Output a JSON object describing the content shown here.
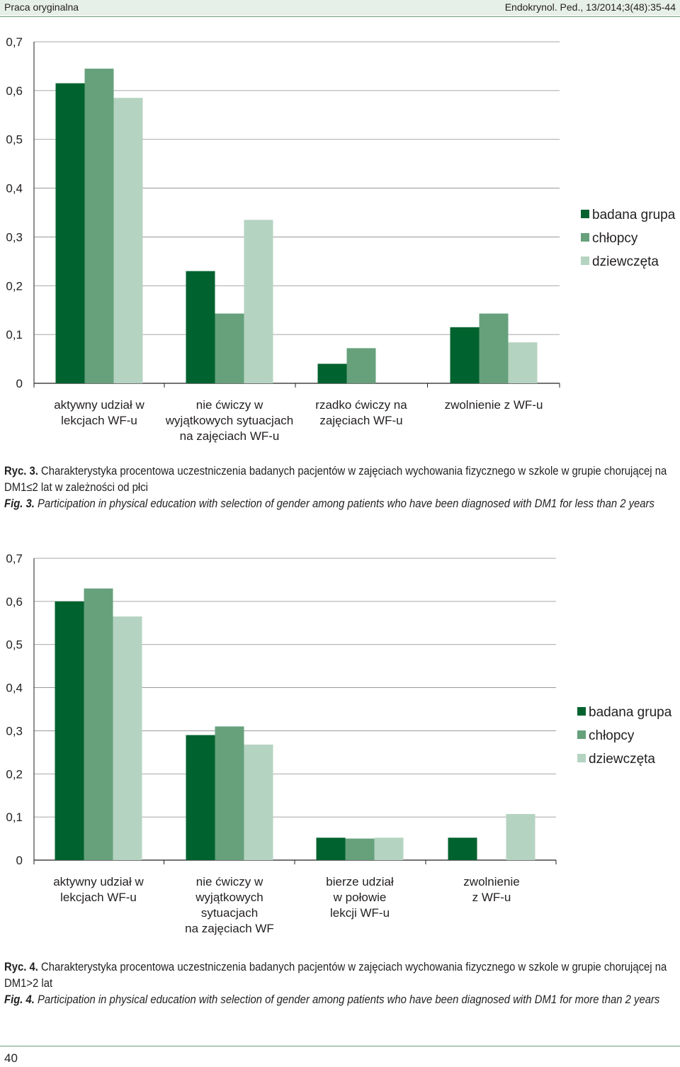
{
  "header": {
    "left": "Praca oryginalna",
    "right": "Endokrynol. Ped., 13/2014;3(48):35-44"
  },
  "colors": {
    "badana_grupa": "#00622f",
    "chlopcy": "#66a17c",
    "dziewczeta": "#b5d3c1"
  },
  "chart_data": [
    {
      "type": "bar",
      "ylim": [
        0,
        0.7
      ],
      "yticks": [
        "0",
        "0,1",
        "0,2",
        "0,3",
        "0,4",
        "0,5",
        "0,6",
        "0,7"
      ],
      "categories": [
        [
          "aktywny udział w",
          "lekcjach WF-u"
        ],
        [
          "nie ćwiczy w",
          "wyjątkowych sytuacjach",
          "na zajęciach WF-u"
        ],
        [
          "rzadko ćwiczy na",
          "zajęciach WF-u"
        ],
        [
          "zwolnienie z WF-u"
        ]
      ],
      "series": [
        {
          "name": "badana grupa",
          "values": [
            0.615,
            0.23,
            0.04,
            0.115
          ]
        },
        {
          "name": "chłopcy",
          "values": [
            0.645,
            0.143,
            0.072,
            0.143
          ]
        },
        {
          "name": "dziewczęta",
          "values": [
            0.585,
            0.335,
            0,
            0.084
          ]
        }
      ],
      "legend": "right"
    },
    {
      "type": "bar",
      "ylim": [
        0,
        0.7
      ],
      "yticks": [
        "0",
        "0,1",
        "0,2",
        "0,3",
        "0,4",
        "0,5",
        "0,6",
        "0,7"
      ],
      "categories": [
        [
          "aktywny udział w",
          "lekcjach WF-u"
        ],
        [
          "nie ćwiczy w",
          "wyjątkowych",
          "sytuacjach",
          "na zajęciach WF"
        ],
        [
          "bierze udział",
          "w połowie",
          "lekcji WF-u"
        ],
        [
          "zwolnienie",
          "z WF-u"
        ]
      ],
      "series": [
        {
          "name": "badana grupa",
          "values": [
            0.6,
            0.29,
            0.052,
            0.052
          ]
        },
        {
          "name": "chłopcy",
          "values": [
            0.63,
            0.31,
            0.05,
            0
          ]
        },
        {
          "name": "dziewczęta",
          "values": [
            0.565,
            0.268,
            0.052,
            0.107
          ]
        }
      ],
      "legend": "right"
    }
  ],
  "captions": [
    {
      "pl_label": "Ryc. 3.",
      "pl_text": " Charakterystyka procentowa uczestniczenia badanych pacjentów w zajęciach wychowania fizycznego w szkole w grupie chorującej na DM1≤2 lat w zależności od płci",
      "en_label": "Fig. 3.",
      "en_text": " Participation in physical education with selection of gender among patients who have been diagnosed with DM1 for less than 2 years"
    },
    {
      "pl_label": "Ryc. 4.",
      "pl_text": " Charakterystyka procentowa uczestniczenia badanych pacjentów w zajęciach wychowania fizycznego w szkole w grupie chorującej na DM1>2 lat",
      "en_label": "Fig. 4.",
      "en_text": " Participation in physical education with selection of gender among patients who have been diagnosed with DM1 for more than 2 years"
    }
  ],
  "page_number": "40"
}
